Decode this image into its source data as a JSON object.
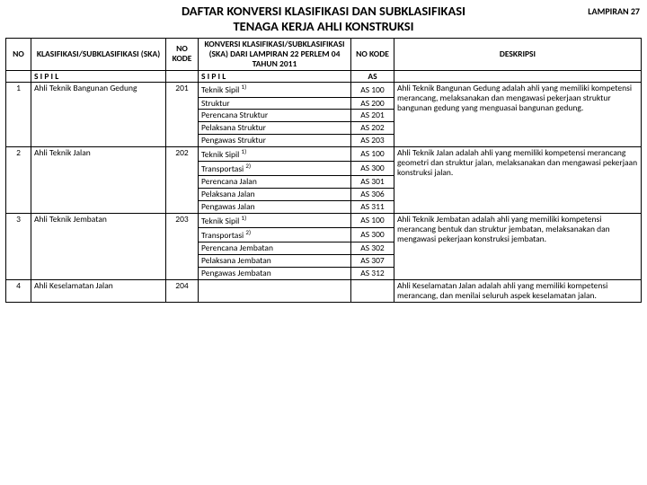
{
  "header": {
    "title_line1": "DAFTAR KONVERSI KLASIFIKASI DAN SUBKLASIFIKASI",
    "title_line2": "TENAGA KERJA AHLI KONSTRUKSI",
    "lampiran": "LAMPIRAN 27"
  },
  "table": {
    "columns": {
      "no": "NO",
      "ska": "KLASIFIKASI/SUBKLASIFIKASI (SKA)",
      "kode1": "NO KODE",
      "konv": "KONVERSI KLASIFIKASI/SUBKLASIFIKASI (SKA) DARI LAMPIRAN 22 PERLEM 04 TAHUN 2011",
      "kode2": "NO KODE",
      "desc": "DESKRIPSI"
    },
    "cat_left": "S I P I L",
    "cat_mid": "S I P I L",
    "cat_right": "AS",
    "rows": [
      {
        "no": "1",
        "ska": "Ahli Teknik Bangunan Gedung",
        "kode": "201",
        "desc": "Ahli Teknik Bangunan Gedung adalah ahli yang memiliki kompetensi merancang, melaksanakan dan mengawasi pekerjaan struktur bangunan gedung yang menguasai bangunan gedung.",
        "sub": [
          {
            "l": "Teknik Sipil",
            "sup": "1)",
            "k": "AS 100"
          },
          {
            "l": "Struktur",
            "k": "AS 200"
          },
          {
            "l": "Perencana Struktur",
            "k": "AS 201"
          },
          {
            "l": "Pelaksana Struktur",
            "k": "AS 202"
          },
          {
            "l": "Pengawas Struktur",
            "k": "AS 203"
          }
        ]
      },
      {
        "no": "2",
        "ska": "Ahli Teknik Jalan",
        "kode": "202",
        "desc": "Ahli Teknik Jalan adalah ahli yang memiliki kompetensi merancang geometri dan struktur jalan, melaksanakan dan mengawasi pekerjaan konstruksi jalan.",
        "sub": [
          {
            "l": "Teknik Sipil",
            "sup": "1)",
            "k": "AS 100"
          },
          {
            "l": "Transportasi",
            "sup": "2)",
            "k": "AS 300"
          },
          {
            "l": "Perencana Jalan",
            "k": "AS 301"
          },
          {
            "l": "Pelaksana Jalan",
            "k": "AS 306"
          },
          {
            "l": "Pengawas Jalan",
            "k": "AS 311"
          }
        ]
      },
      {
        "no": "3",
        "ska": "Ahli Teknik Jembatan",
        "kode": "203",
        "desc": "Ahli Teknik Jembatan adalah ahli yang memiliki kompetensi merancang bentuk dan struktur jembatan, melaksanakan dan mengawasi pekerjaan konstruksi jembatan.",
        "sub": [
          {
            "l": "Teknik Sipil",
            "sup": "1)",
            "k": "AS 100"
          },
          {
            "l": "Transportasi",
            "sup": "2)",
            "k": "AS 300"
          },
          {
            "l": "Perencana Jembatan",
            "k": "AS 302"
          },
          {
            "l": "Pelaksana Jembatan",
            "k": "AS 307"
          },
          {
            "l": "Pengawas Jembatan",
            "k": "AS 312"
          }
        ]
      },
      {
        "no": "4",
        "ska": "Ahli Keselamatan Jalan",
        "kode": "204",
        "desc": "Ahli Keselamatan Jalan adalah ahli yang memiliki kompetensi merancang, dan menilai seluruh aspek keselamatan jalan.",
        "sub": []
      }
    ]
  },
  "style": {
    "border_color": "#000000",
    "background": "#ffffff",
    "title_fontsize": 14.5,
    "cell_fontsize": 9.5,
    "font_family": "Calibri, Arial, sans-serif"
  }
}
